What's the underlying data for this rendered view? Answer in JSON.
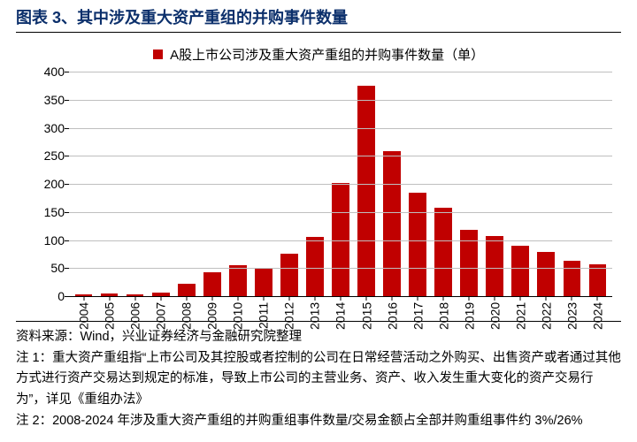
{
  "title": "图表 3、其中涉及重大资产重组的并购事件数量",
  "legend_label": "A股上市公司涉及重大资产重组的并购事件数量（单）",
  "chart": {
    "type": "bar",
    "ylim": [
      0,
      400
    ],
    "ytick_step": 50,
    "yticks": [
      0,
      50,
      100,
      150,
      200,
      250,
      300,
      350,
      400
    ],
    "categories": [
      "2004",
      "2005",
      "2006",
      "2007",
      "2008",
      "2009",
      "2010",
      "2011",
      "2012",
      "2013",
      "2014",
      "2015",
      "2016",
      "2017",
      "2018",
      "2019",
      "2020",
      "2021",
      "2022",
      "2023",
      "2024"
    ],
    "values": [
      3,
      5,
      3,
      6,
      22,
      43,
      55,
      50,
      75,
      105,
      202,
      375,
      258,
      185,
      158,
      118,
      107,
      90,
      78,
      63,
      56
    ],
    "bar_color": "#c00000",
    "grid_color": "#bfbfbf",
    "axis_color": "#000000",
    "background_color": "#ffffff",
    "bar_width_ratio": 0.68,
    "label_fontsize": 14,
    "legend_marker_color": "#c00000"
  },
  "notes": {
    "source": "资料来源：Wind，兴业证券经济与金融研究院整理",
    "n1": "注 1：重大资产重组指“上市公司及其控股或者控制的公司在日常经营活动之外购买、出售资产或者通过其他方式进行资产交易达到规定的标准，导致上市公司的主营业务、资产、收入发生重大变化的资产交易行为”，详见《重组办法》",
    "n2": "注 2：2008-2024 年涉及重大资产重组的并购重组事件数量/交易金额占全部并购重组事件约 3%/26%"
  }
}
